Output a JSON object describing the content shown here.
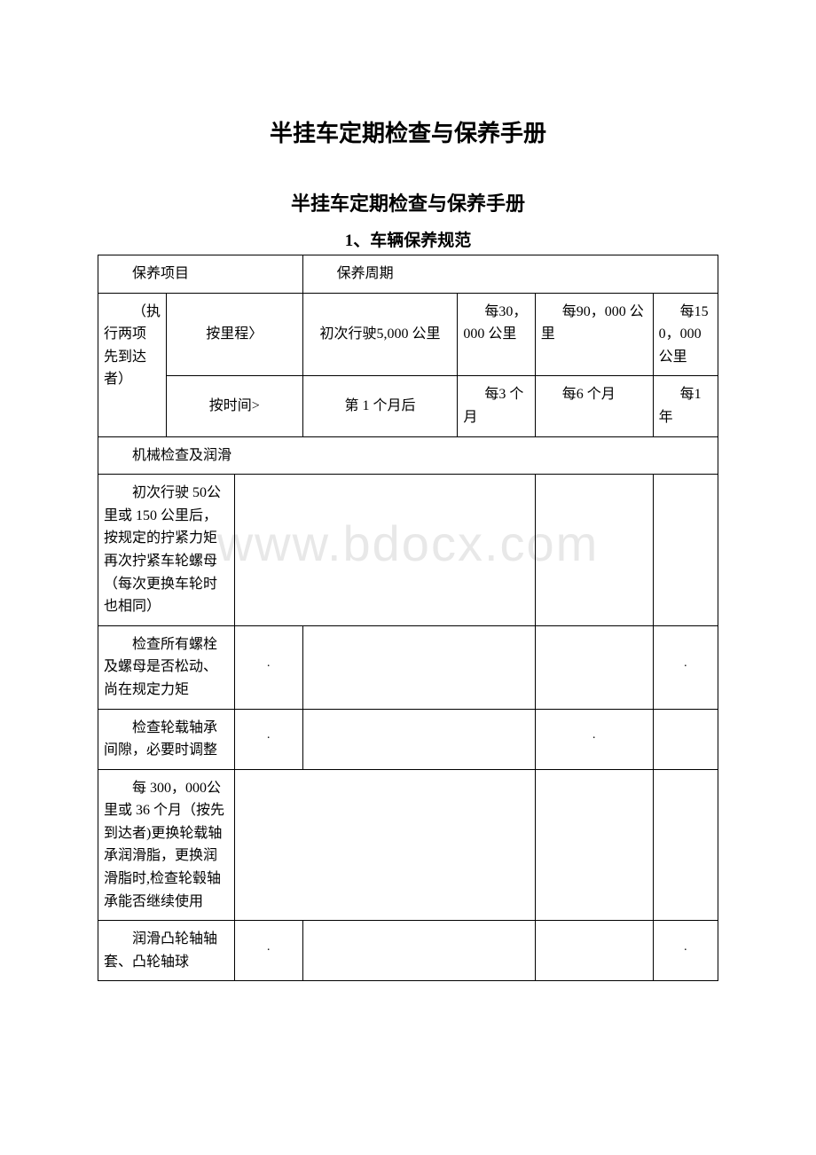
{
  "watermark": "www.bdocx.com",
  "titles": {
    "main": "半挂车定期检查与保养手册",
    "sub": "半挂车定期检查与保养手册",
    "section": "1、车辆保养规范"
  },
  "header": {
    "col_item": "保养项目",
    "col_period": "保养周期",
    "exec_note": "（执行两项先到达者）",
    "by_mileage": "按里程〉",
    "by_time": "按时间>",
    "mileage_initial": "初次行驶5,000 公里",
    "mileage_30k": "每30，000 公里",
    "mileage_90k": "每90，000 公里",
    "mileage_150k": "每150，000 公里",
    "time_initial": "第 1 个月后",
    "time_3m": "每3 个月",
    "time_6m": "每6 个月",
    "time_1y": "每1 年"
  },
  "section_mech": "机械检查及润滑",
  "rows": {
    "r1": "初次行驶 50公里或 150 公里后，按规定的拧紧力矩再次拧紧车轮螺母（每次更换车轮时也相同）",
    "r2": "检查所有螺栓及螺母是否松动、尚在规定力矩",
    "r3": "检查轮载轴承间隙，必要时调整",
    "r4": "每 300，000公里或 36 个月（按先到达者)更换轮载轴承润滑脂，更换润滑脂时,检查轮毂轴承能否继续使用",
    "r5": "润滑凸轮轴轴套、凸轮轴球"
  },
  "dot": "·",
  "colors": {
    "background": "#ffffff",
    "border": "#000000",
    "text": "#000000",
    "watermark": "#e8e8e8"
  },
  "fonts": {
    "title_main_size": 26,
    "title_sub_size": 22,
    "section_size": 19,
    "cell_size": 16
  }
}
